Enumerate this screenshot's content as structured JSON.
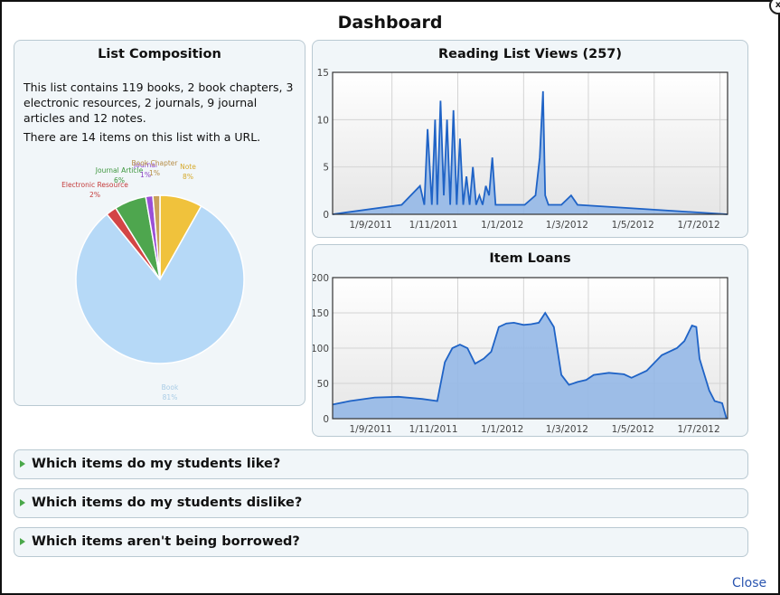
{
  "dialog": {
    "title": "Dashboard",
    "close_icon_glyph": "x",
    "close_link": "Close"
  },
  "composition": {
    "title": "List Composition",
    "paragraph1": "This list contains 119 books, 2 book chapters, 3 electronic resources, 2 journals, 9 journal articles and 12 notes.",
    "paragraph2": "There are 14 items on this list with a URL.",
    "slices": [
      {
        "label": "Book",
        "pct_label": "81%",
        "value": 119,
        "color": "#b6d9f7",
        "label_color": "#a9cce6"
      },
      {
        "label": "Electronic Resource",
        "pct_label": "2%",
        "value": 3,
        "color": "#d34545",
        "label_color": "#c43b3b"
      },
      {
        "label": "Journal Article",
        "pct_label": "6%",
        "value": 9,
        "color": "#4ea64e",
        "label_color": "#3d963d"
      },
      {
        "label": "Journal",
        "pct_label": "1%",
        "value": 2,
        "color": "#9a4fd6",
        "label_color": "#8a3fc6"
      },
      {
        "label": "Book Chapter",
        "pct_label": "1%",
        "value": 2,
        "color": "#c9a15a",
        "label_color": "#b68d45"
      },
      {
        "label": "Note",
        "pct_label": "8%",
        "value": 12,
        "color": "#f0c23c",
        "label_color": "#d6a92a"
      }
    ]
  },
  "views_chart": {
    "title": "Reading List Views (257)",
    "fill_color": "#8fb5e6",
    "line_color": "#1f63c6"
  },
  "loans_chart": {
    "title": "Item Loans",
    "fill_color": "#8fb5e6",
    "line_color": "#1f63c6"
  },
  "accordion": [
    {
      "label": "Which items do my students like?"
    },
    {
      "label": "Which items do my students dislike?"
    },
    {
      "label": "Which items aren't being borrowed?"
    }
  ],
  "chart_data": [
    {
      "type": "area",
      "title": "Reading List Views (257)",
      "xlabel": "",
      "ylabel": "",
      "x_ticks": [
        "1/9/2011",
        "1/11/2011",
        "1/1/2012",
        "1/3/2012",
        "1/5/2012",
        "1/7/2012"
      ],
      "ylim": [
        0,
        15
      ],
      "y_ticks": [
        0,
        5,
        10,
        15
      ],
      "grid": true,
      "series": [
        {
          "x": [
            "2011-07-08",
            "2011-09-10",
            "2011-09-27",
            "2011-10-01",
            "2011-10-04",
            "2011-10-08",
            "2011-10-11",
            "2011-10-13",
            "2011-10-16",
            "2011-10-19",
            "2011-10-22",
            "2011-10-25",
            "2011-10-28",
            "2011-10-31",
            "2011-11-03",
            "2011-11-06",
            "2011-11-09",
            "2011-11-12",
            "2011-11-15",
            "2011-11-18",
            "2011-11-21",
            "2011-11-24",
            "2011-11-27",
            "2011-11-30",
            "2011-12-03",
            "2011-12-06",
            "2011-12-12",
            "2012-01-02",
            "2012-01-12",
            "2012-01-16",
            "2012-01-19",
            "2012-01-21",
            "2012-01-24",
            "2012-01-27",
            "2012-02-05",
            "2012-02-14",
            "2012-02-20",
            "2012-07-08"
          ],
          "y": [
            0,
            1,
            3,
            1,
            9,
            1,
            10,
            1,
            12,
            2,
            10,
            1,
            11,
            1,
            8,
            1,
            4,
            1,
            5,
            1,
            2,
            1,
            3,
            2,
            6,
            1,
            1,
            1,
            2,
            6,
            13,
            2,
            1,
            1,
            1,
            2,
            1,
            0
          ]
        }
      ]
    },
    {
      "type": "area",
      "title": "Item Loans",
      "xlabel": "",
      "ylabel": "",
      "x_ticks": [
        "1/9/2011",
        "1/11/2011",
        "1/1/2012",
        "1/3/2012",
        "1/5/2012",
        "1/7/2012"
      ],
      "ylim": [
        0,
        200
      ],
      "y_ticks": [
        0,
        50,
        100,
        150,
        200
      ],
      "grid": true,
      "series": [
        {
          "x": [
            "2011-07-08",
            "2011-07-24",
            "2011-08-16",
            "2011-09-07",
            "2011-09-29",
            "2011-10-13",
            "2011-10-20",
            "2011-10-27",
            "2011-11-03",
            "2011-11-10",
            "2011-11-17",
            "2011-11-25",
            "2011-12-02",
            "2011-12-09",
            "2011-12-16",
            "2011-12-23",
            "2012-01-01",
            "2012-01-08",
            "2012-01-15",
            "2012-01-21",
            "2012-01-29",
            "2012-02-05",
            "2012-02-12",
            "2012-02-20",
            "2012-02-28",
            "2012-03-06",
            "2012-03-20",
            "2012-04-03",
            "2012-04-10",
            "2012-04-24",
            "2012-05-08",
            "2012-05-22",
            "2012-05-29",
            "2012-06-05",
            "2012-06-09",
            "2012-06-12",
            "2012-06-16",
            "2012-06-21",
            "2012-06-26",
            "2012-07-03",
            "2012-07-07"
          ],
          "y": [
            20,
            25,
            30,
            31,
            28,
            25,
            80,
            100,
            105,
            100,
            78,
            85,
            95,
            130,
            135,
            136,
            133,
            134,
            136,
            150,
            130,
            62,
            48,
            52,
            55,
            62,
            65,
            63,
            58,
            68,
            90,
            100,
            110,
            132,
            130,
            85,
            65,
            40,
            25,
            22,
            0
          ]
        }
      ]
    }
  ]
}
